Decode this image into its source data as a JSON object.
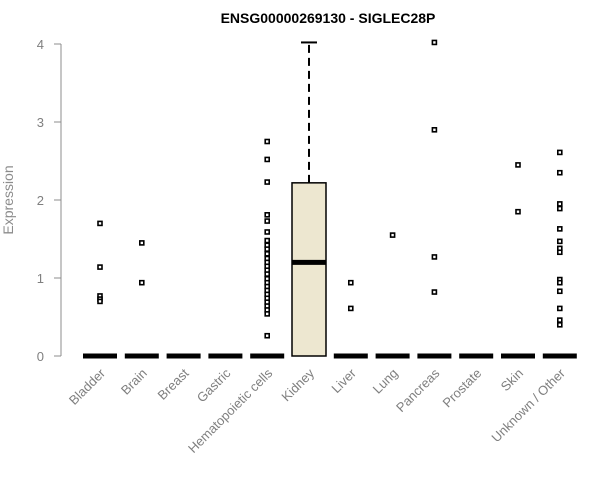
{
  "chart_data": {
    "type": "box",
    "title": "ENSG00000269130 - SIGLEC28P",
    "xlabel": "",
    "ylabel": "Expression",
    "ylim": [
      0,
      4
    ],
    "y_ticks": [
      "0",
      "1",
      "2",
      "3",
      "4"
    ],
    "grid": false,
    "box_color": "#ede7d0",
    "categories": [
      "Bladder",
      "Brain",
      "Breast",
      "Gastric",
      "Hematopoietic cells",
      "Kidney",
      "Liver",
      "Lung",
      "Pancreas",
      "Prostate",
      "Skin",
      "Unknown / Other"
    ],
    "boxes": [
      {
        "q1": 0,
        "median": 0,
        "q3": 0,
        "whisker_low": 0,
        "whisker_high": 0,
        "outliers": [
          1.7,
          1.14,
          0.77,
          0.73,
          0.7
        ]
      },
      {
        "q1": 0,
        "median": 0,
        "q3": 0,
        "whisker_low": 0,
        "whisker_high": 0,
        "outliers": [
          1.45,
          0.94
        ]
      },
      {
        "q1": 0,
        "median": 0,
        "q3": 0,
        "whisker_low": 0,
        "whisker_high": 0,
        "outliers": []
      },
      {
        "q1": 0,
        "median": 0,
        "q3": 0,
        "whisker_low": 0,
        "whisker_high": 0,
        "outliers": []
      },
      {
        "q1": 0,
        "median": 0,
        "q3": 0,
        "whisker_low": 0,
        "whisker_high": 0,
        "outliers": [
          2.75,
          2.52,
          2.23,
          1.81,
          1.73,
          1.59,
          1.48,
          1.42,
          1.37,
          1.31,
          1.25,
          1.2,
          1.15,
          1.1,
          1.05,
          0.99,
          0.94,
          0.89,
          0.84,
          0.79,
          0.74,
          0.69,
          0.64,
          0.59,
          0.54,
          0.26
        ]
      },
      {
        "q1": 0,
        "median": 1.2,
        "q3": 2.22,
        "whisker_low": 0,
        "whisker_high": 4.02,
        "outliers": []
      },
      {
        "q1": 0,
        "median": 0,
        "q3": 0,
        "whisker_low": 0,
        "whisker_high": 0,
        "outliers": [
          0.94,
          0.61
        ]
      },
      {
        "q1": 0,
        "median": 0,
        "q3": 0,
        "whisker_low": 0,
        "whisker_high": 0,
        "outliers": [
          1.55
        ]
      },
      {
        "q1": 0,
        "median": 0,
        "q3": 0,
        "whisker_low": 0,
        "whisker_high": 0,
        "outliers": [
          4.02,
          2.9,
          1.27,
          0.82
        ]
      },
      {
        "q1": 0,
        "median": 0,
        "q3": 0,
        "whisker_low": 0,
        "whisker_high": 0,
        "outliers": []
      },
      {
        "q1": 0,
        "median": 0,
        "q3": 0,
        "whisker_low": 0,
        "whisker_high": 0,
        "outliers": [
          2.45,
          1.85
        ]
      },
      {
        "q1": 0,
        "median": 0,
        "q3": 0,
        "whisker_low": 0,
        "whisker_high": 0,
        "outliers": [
          2.61,
          2.35,
          1.95,
          1.89,
          1.63,
          1.47,
          1.38,
          1.33,
          0.98,
          0.94,
          0.83,
          0.61,
          0.46,
          0.4
        ]
      }
    ]
  }
}
